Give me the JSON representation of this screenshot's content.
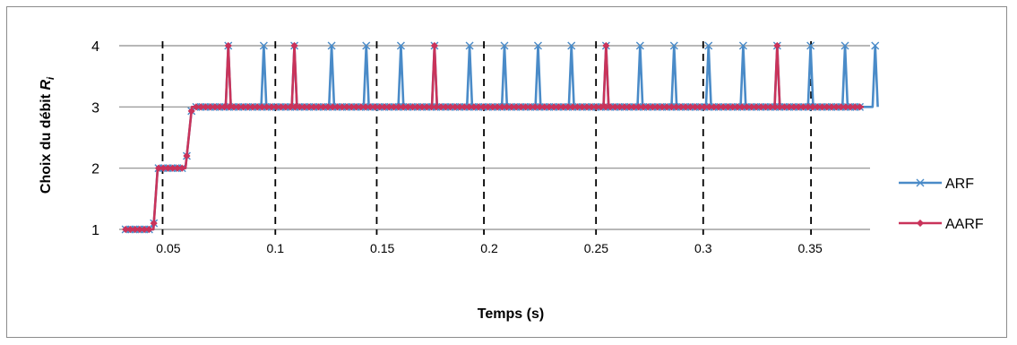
{
  "chart_data": {
    "type": "line",
    "xlabel": "Temps (s)",
    "ylabel_main": "Choix du débit ",
    "ylabel_sym": "R",
    "ylabel_sub": "i",
    "xlim": [
      0.027,
      0.378
    ],
    "ylim": [
      1,
      4
    ],
    "x_ticks": [
      0.05,
      0.1,
      0.15,
      0.2,
      0.25,
      0.3,
      0.35
    ],
    "x_tick_labels": [
      "0.05",
      "0.1",
      "0.15",
      "0.2",
      "0.25",
      "0.3",
      "0.35"
    ],
    "y_ticks": [
      1,
      2,
      3,
      4
    ],
    "y_tick_labels": [
      "1",
      "2",
      "3",
      "4"
    ],
    "grid": "horizontal",
    "legend_position": "right",
    "vertical_dashed_lines": [
      0.0473,
      0.1,
      0.1474,
      0.1975,
      0.2499,
      0.3,
      0.3504
    ],
    "series": [
      {
        "name": "ARF",
        "color": "#4a8bc8",
        "marker": "x",
        "baseline": [
          [
            0.03,
            1
          ],
          [
            0.043,
            1
          ],
          [
            0.045,
            2
          ],
          [
            0.058,
            2
          ],
          [
            0.061,
            3
          ],
          [
            0.375,
            3
          ]
        ],
        "spikes": [
          0.078,
          0.0946,
          0.1089,
          0.1263,
          0.1425,
          0.1587,
          0.1744,
          0.1908,
          0.2071,
          0.2228,
          0.2384,
          0.2546,
          0.2705,
          0.2864,
          0.3025,
          0.3187,
          0.3346,
          0.3502,
          0.3663,
          0.3804
        ]
      },
      {
        "name": "AARF",
        "color": "#c9335a",
        "marker": "diamond",
        "baseline": [
          [
            0.03,
            1
          ],
          [
            0.043,
            1
          ],
          [
            0.045,
            2
          ],
          [
            0.058,
            2
          ],
          [
            0.061,
            3
          ],
          [
            0.375,
            3
          ]
        ],
        "spikes": [
          0.078,
          0.1089,
          0.1744,
          0.2546,
          0.3346
        ]
      }
    ]
  }
}
